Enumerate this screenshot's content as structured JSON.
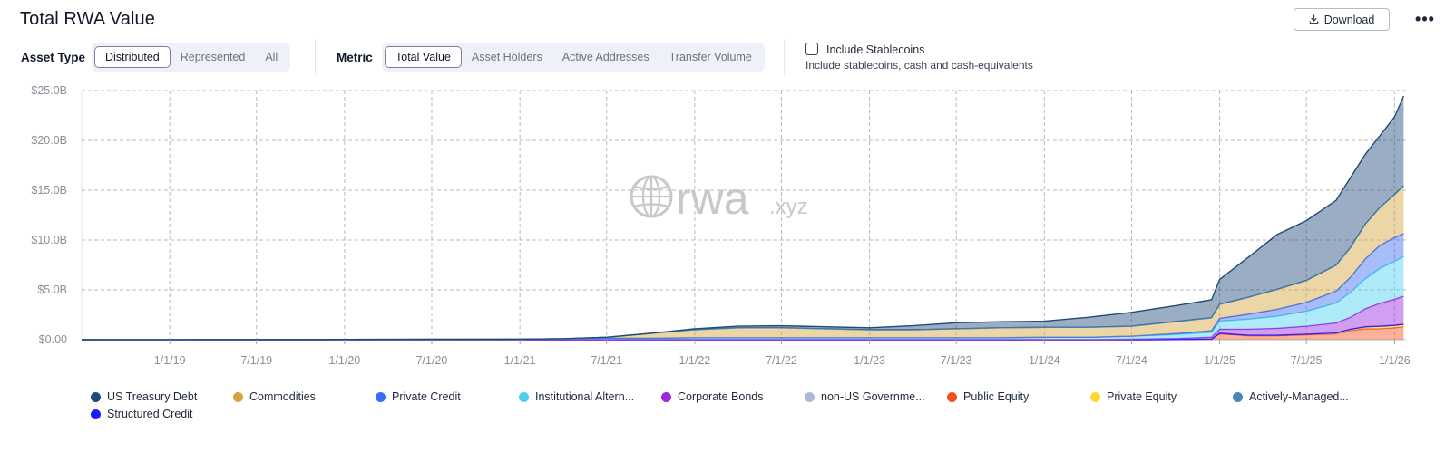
{
  "header": {
    "title": "Total RWA Value",
    "download_label": "Download",
    "more_label": "•••"
  },
  "filters": {
    "asset_type": {
      "label": "Asset Type",
      "options": [
        "Distributed",
        "Represented",
        "All"
      ],
      "selected": "Distributed"
    },
    "metric": {
      "label": "Metric",
      "options": [
        "Total Value",
        "Asset Holders",
        "Active Addresses",
        "Transfer Volume"
      ],
      "selected": "Total Value"
    },
    "stablecoins": {
      "label": "Include Stablecoins",
      "description": "Include stablecoins, cash and cash-equivalents",
      "checked": false
    }
  },
  "watermark": {
    "main": "rwa",
    "suffix": ".xyz",
    "icon": "globe-icon"
  },
  "chart_data": {
    "type": "area",
    "stacked": true,
    "grid": true,
    "legend_position": "bottom",
    "y_tick_labels": [
      "$0.00",
      "$5.0B",
      "$10.0B",
      "$15.0B",
      "$20.0B",
      "$25.0B"
    ],
    "y_tick_values": [
      0,
      5,
      10,
      15,
      20,
      25
    ],
    "ylim": [
      0,
      25
    ],
    "y_unit": "USD billions",
    "x_tick_labels": [
      "1/1/19",
      "7/1/19",
      "1/1/20",
      "7/1/20",
      "1/1/21",
      "7/1/21",
      "1/1/22",
      "7/1/22",
      "1/1/23",
      "7/1/23",
      "1/1/24",
      "7/1/24",
      "1/1/25",
      "7/1/25",
      "1/1/26"
    ],
    "x_tick_dates": [
      "2019-01-01",
      "2019-07-01",
      "2020-01-01",
      "2020-07-01",
      "2021-01-01",
      "2021-07-01",
      "2022-01-01",
      "2022-07-01",
      "2023-01-01",
      "2023-07-01",
      "2024-01-01",
      "2024-07-01",
      "2025-01-01",
      "2025-07-01",
      "2026-01-01"
    ],
    "xlim": [
      "2018-07-01",
      "2026-01-25"
    ],
    "x": [
      "2018-07-01",
      "2019-01-01",
      "2019-07-01",
      "2020-01-01",
      "2020-07-01",
      "2021-01-01",
      "2021-04-01",
      "2021-07-01",
      "2021-10-01",
      "2022-01-01",
      "2022-04-01",
      "2022-07-01",
      "2022-10-01",
      "2023-01-01",
      "2023-04-01",
      "2023-07-01",
      "2023-10-01",
      "2024-01-01",
      "2024-04-01",
      "2024-07-01",
      "2024-10-01",
      "2024-12-15",
      "2025-01-01",
      "2025-03-01",
      "2025-05-01",
      "2025-07-01",
      "2025-09-01",
      "2025-10-01",
      "2025-11-01",
      "2025-12-01",
      "2026-01-01",
      "2026-01-20"
    ],
    "series": [
      {
        "name": "Public Equity",
        "color": "#f4511e",
        "values": [
          0,
          0,
          0,
          0,
          0,
          0,
          0,
          0,
          0,
          0,
          0,
          0,
          0,
          0,
          0,
          0,
          0,
          0,
          0,
          0,
          0.02,
          0.05,
          0.6,
          0.4,
          0.4,
          0.5,
          0.6,
          0.9,
          1.1,
          1.1,
          1.2,
          1.3
        ]
      },
      {
        "name": "Private Equity",
        "color": "#fdd835",
        "values": [
          0,
          0,
          0,
          0,
          0,
          0,
          0,
          0,
          0,
          0,
          0,
          0,
          0,
          0,
          0,
          0,
          0,
          0,
          0,
          0,
          0,
          0,
          0.05,
          0.05,
          0.05,
          0.05,
          0.05,
          0.1,
          0.15,
          0.2,
          0.2,
          0.2
        ]
      },
      {
        "name": "Structured Credit",
        "color": "#1a1aff",
        "values": [
          0,
          0,
          0,
          0,
          0,
          0,
          0,
          0,
          0,
          0,
          0,
          0,
          0,
          0,
          0,
          0,
          0,
          0,
          0,
          0,
          0,
          0,
          0,
          0,
          0,
          0,
          0.02,
          0.05,
          0.05,
          0.05,
          0.05,
          0.05
        ]
      },
      {
        "name": "Corporate Bonds",
        "color": "#9c27e0",
        "values": [
          0,
          0,
          0,
          0,
          0,
          0,
          0,
          0,
          0,
          0,
          0,
          0,
          0,
          0,
          0,
          0,
          0,
          0,
          0,
          0.05,
          0.1,
          0.2,
          0.4,
          0.6,
          0.7,
          0.8,
          1.0,
          1.2,
          1.8,
          2.3,
          2.6,
          2.8
        ]
      },
      {
        "name": "Institutional Alternative Funds",
        "color": "#4dd0f0",
        "values": [
          0,
          0.01,
          0.02,
          0.03,
          0.04,
          0.05,
          0.1,
          0.15,
          0.15,
          0.2,
          0.2,
          0.2,
          0.2,
          0.2,
          0.2,
          0.2,
          0.2,
          0.25,
          0.25,
          0.3,
          0.4,
          0.5,
          0.8,
          1.0,
          1.2,
          1.5,
          2.0,
          2.5,
          3.0,
          3.5,
          3.8,
          4.0
        ]
      },
      {
        "name": "Private Credit",
        "color": "#3b6cf5",
        "values": [
          0,
          0,
          0,
          0,
          0,
          0,
          0,
          0,
          0,
          0,
          0,
          0,
          0,
          0,
          0,
          0,
          0,
          0,
          0,
          0,
          0.1,
          0.15,
          0.3,
          0.5,
          0.7,
          0.9,
          1.2,
          1.5,
          2.0,
          2.3,
          2.4,
          2.3
        ]
      },
      {
        "name": "Commodities",
        "color": "#d4a33a",
        "values": [
          0,
          0,
          0,
          0,
          0,
          0,
          0,
          0.1,
          0.5,
          0.8,
          1.0,
          1.0,
          0.9,
          0.8,
          0.8,
          0.9,
          1.0,
          1.0,
          1.0,
          1.0,
          1.2,
          1.3,
          1.4,
          1.7,
          2.0,
          2.2,
          2.6,
          3.0,
          3.5,
          3.8,
          4.3,
          4.8
        ]
      },
      {
        "name": "non-US Government Debt",
        "color": "#aabbcf",
        "values": [
          0,
          0,
          0,
          0,
          0,
          0,
          0,
          0,
          0,
          0,
          0,
          0,
          0,
          0,
          0,
          0,
          0,
          0,
          0,
          0,
          0,
          0,
          0,
          0,
          0,
          0,
          0,
          0,
          0,
          0,
          0,
          0
        ]
      },
      {
        "name": "Actively-Managed Strategies",
        "color": "#4a86b8",
        "values": [
          0,
          0,
          0,
          0,
          0,
          0,
          0,
          0,
          0,
          0,
          0,
          0,
          0,
          0,
          0,
          0,
          0,
          0,
          0,
          0,
          0,
          0,
          0,
          0,
          0,
          0,
          0,
          0,
          0,
          0,
          0,
          0
        ]
      },
      {
        "name": "US Treasury Debt",
        "color": "#1f4a7a",
        "values": [
          0,
          0,
          0,
          0,
          0,
          0,
          0,
          0,
          0,
          0.1,
          0.15,
          0.2,
          0.2,
          0.2,
          0.4,
          0.6,
          0.6,
          0.6,
          1.0,
          1.4,
          1.6,
          1.8,
          2.5,
          4.0,
          5.5,
          6.0,
          6.5,
          7.0,
          7.0,
          7.2,
          7.8,
          9.0
        ]
      }
    ],
    "stacking_order": [
      "Public Equity",
      "Private Equity",
      "Structured Credit",
      "Corporate Bonds",
      "Institutional Alternative Funds",
      "Private Credit",
      "Commodities",
      "non-US Government Debt",
      "Actively-Managed Strategies",
      "US Treasury Debt"
    ]
  },
  "legend": {
    "items": [
      {
        "label": "US Treasury Debt",
        "color": "#1f4a7a"
      },
      {
        "label": "Commodities",
        "color": "#d4a33a"
      },
      {
        "label": "Private Credit",
        "color": "#3b6cf5"
      },
      {
        "label": "Institutional Altern...",
        "color": "#4dd0f0"
      },
      {
        "label": "Corporate Bonds",
        "color": "#9c27e0"
      },
      {
        "label": "non-US Governme...",
        "color": "#aabbcf"
      },
      {
        "label": "Public Equity",
        "color": "#f4511e"
      },
      {
        "label": "Private Equity",
        "color": "#fdd835"
      },
      {
        "label": "Actively-Managed...",
        "color": "#4a86b8"
      },
      {
        "label": "Structured Credit",
        "color": "#1a1aff"
      }
    ]
  }
}
